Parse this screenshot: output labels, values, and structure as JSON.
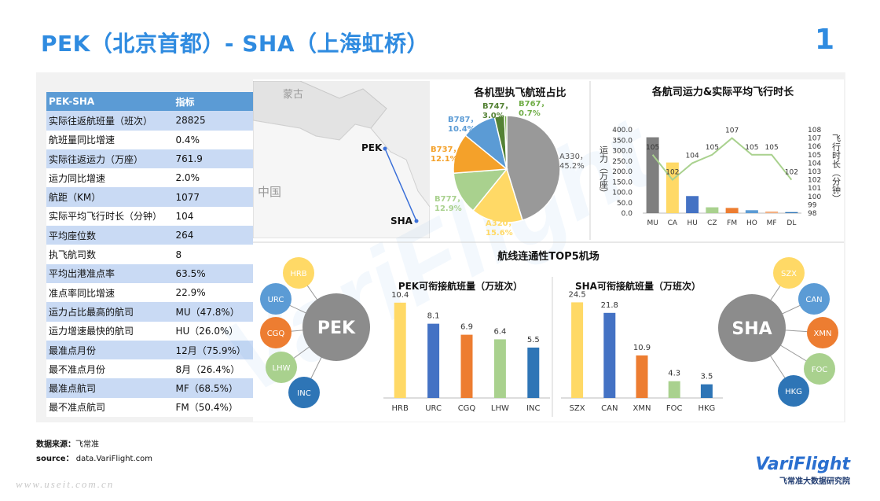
{
  "header": {
    "title": "PEK（北京首都）- SHA（上海虹桥）",
    "page_number": "1"
  },
  "table": {
    "col1": "PEK-SHA",
    "col2": "指标",
    "rows": [
      {
        "k": "实际往返航班量（班次）",
        "v": "28825"
      },
      {
        "k": "航班量同比增速",
        "v": "0.4%"
      },
      {
        "k": "实际往返运力（万座）",
        "v": "761.9"
      },
      {
        "k": "运力同比增速",
        "v": "2.0%"
      },
      {
        "k": "航距（KM）",
        "v": "1077"
      },
      {
        "k": "实际平均飞行时长（分钟）",
        "v": "104"
      },
      {
        "k": "平均座位数",
        "v": "264"
      },
      {
        "k": "执飞航司数",
        "v": "8"
      },
      {
        "k": "平均出港准点率",
        "v": "63.5%"
      },
      {
        "k": "准点率同比增速",
        "v": "22.9%"
      },
      {
        "k": "运力占比最高的航司",
        "v": "MU（47.8%）"
      },
      {
        "k": "运力增速最快的航司",
        "v": "HU（26.0%）"
      },
      {
        "k": "最准点月份",
        "v": "12月（75.9%）"
      },
      {
        "k": "最不准点月份",
        "v": "8月（26.4%）"
      },
      {
        "k": "最准点航司",
        "v": "MF（68.5%）"
      },
      {
        "k": "最不准点航司",
        "v": "FM（50.4%）"
      }
    ]
  },
  "map": {
    "mongolia": "蒙古",
    "china": "中国",
    "pek": "PEK",
    "sha": "SHA"
  },
  "hub_title": "航线连通性TOP5机场",
  "pek_hub": {
    "center": "PEK",
    "nodes": [
      "HRB",
      "URC",
      "CGQ",
      "LHW",
      "INC"
    ],
    "colors": [
      "#ffd966",
      "#5b9bd5",
      "#ed7d31",
      "#a9d18e",
      "#2e75b6"
    ]
  },
  "sha_hub": {
    "center": "SHA",
    "nodes": [
      "SZX",
      "CAN",
      "XMN",
      "FOC",
      "HKG"
    ],
    "colors": [
      "#ffd966",
      "#5b9bd5",
      "#ed7d31",
      "#a9d18e",
      "#2e75b6"
    ]
  },
  "source": {
    "label1": "数据来源：",
    "value1": "飞常准",
    "label2": "source：",
    "value2": "data.VariFlight.com"
  },
  "watermark": "www.useit.com.cn",
  "brand": {
    "name": "VariFlight",
    "sub": "飞常准大数据研究院"
  },
  "chart_data": [
    {
      "type": "pie",
      "title": "各机型执飞航班占比",
      "categories": [
        "A330",
        "A320",
        "B777",
        "B737",
        "B787",
        "B747",
        "B767"
      ],
      "values": [
        45.2,
        15.6,
        12.9,
        12.1,
        10.4,
        3.0,
        0.7
      ],
      "labels": [
        "A330，\n45.2%",
        "A320，\n15.6%",
        "B777，\n12.9%",
        "B737，\n12.1%",
        "B787，\n10.4%",
        "B747，\n3.0%",
        "B767，\n0.7%"
      ],
      "colors": [
        "#999999",
        "#ffd966",
        "#a9d18e",
        "#f4a12a",
        "#5b9bd5",
        "#548235",
        "#70ad47"
      ]
    },
    {
      "type": "bar",
      "title": "各航司运力&实际平均飞行时长",
      "ylabel": "运力（万座）",
      "y2label": "飞行时长（分钟）",
      "categories": [
        "MU",
        "CA",
        "HU",
        "CZ",
        "FM",
        "HO",
        "MF",
        "DL"
      ],
      "yticks": [
        "400.0",
        "350.0",
        "300.0",
        "250.0",
        "200.0",
        "150.0",
        "100.0",
        "50.0",
        "0.0"
      ],
      "y2ticks": [
        "108",
        "107",
        "106",
        "105",
        "104",
        "103",
        "102",
        "101",
        "100",
        "99",
        "98"
      ],
      "ylim": [
        0,
        400
      ],
      "y2lim": [
        98,
        108
      ],
      "values": [
        364,
        243,
        82,
        28,
        25,
        14,
        8,
        5
      ],
      "bar_colors": [
        "#7f7f7f",
        "#ffd966",
        "#4472c4",
        "#a9d18e",
        "#ed7d31",
        "#5b9bd5",
        "#f4b183",
        "#2e75b6"
      ],
      "line_values": [
        105,
        102,
        104,
        105,
        107,
        105,
        105,
        102
      ],
      "line_labels": [
        "105",
        "102",
        "104",
        "105",
        "107",
        "105",
        "105",
        "102"
      ]
    },
    {
      "type": "bar",
      "title": "PEK可衔接航班量（万班次）",
      "categories": [
        "HRB",
        "URC",
        "CGQ",
        "LHW",
        "INC"
      ],
      "values": [
        10.4,
        8.1,
        6.9,
        6.4,
        5.5
      ],
      "labels": [
        "10.4",
        "8.1",
        "6.9",
        "6.4",
        "5.5"
      ],
      "colors": [
        "#ffd966",
        "#4472c4",
        "#ed7d31",
        "#a9d18e",
        "#2e75b6"
      ]
    },
    {
      "type": "bar",
      "title": "SHA可衔接航班量（万班次）",
      "categories": [
        "SZX",
        "CAN",
        "XMN",
        "FOC",
        "HKG"
      ],
      "values": [
        24.5,
        21.8,
        10.9,
        4.3,
        3.5
      ],
      "labels": [
        "24.5",
        "21.8",
        "10.9",
        "4.3",
        "3.5"
      ],
      "colors": [
        "#ffd966",
        "#4472c4",
        "#ed7d31",
        "#a9d18e",
        "#2e75b6"
      ]
    }
  ]
}
